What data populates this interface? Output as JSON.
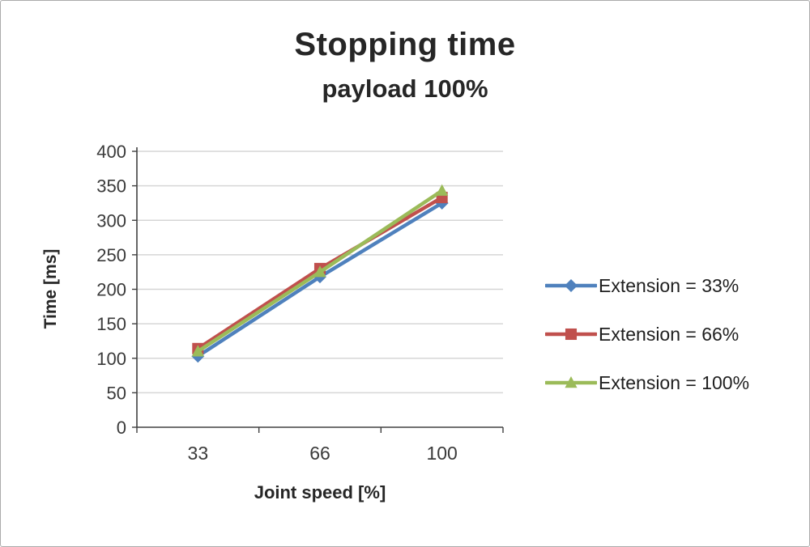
{
  "chart_data": {
    "type": "line",
    "title": "Stopping time",
    "subtitle": "payload 100%",
    "xlabel": "Joint speed [%]",
    "ylabel": "Time [ms]",
    "categories": [
      "33",
      "66",
      "100"
    ],
    "series": [
      {
        "name": "Extension = 33%",
        "marker": "diamond",
        "color": "#4F81BD",
        "values": [
          103,
          218,
          325
        ]
      },
      {
        "name": "Extension = 66%",
        "marker": "square",
        "color": "#C0504D",
        "values": [
          114,
          230,
          333
        ]
      },
      {
        "name": "Extension = 100%",
        "marker": "triangle",
        "color": "#9BBB59",
        "values": [
          110,
          225,
          343
        ]
      }
    ],
    "ylim": [
      0,
      400
    ],
    "ytick_step": 50,
    "grid": true,
    "legend_position": "right",
    "axis_color": "#404040",
    "grid_color": "#d6d6d6",
    "text_color": "#3a3a3a",
    "title_color": "#262626"
  }
}
